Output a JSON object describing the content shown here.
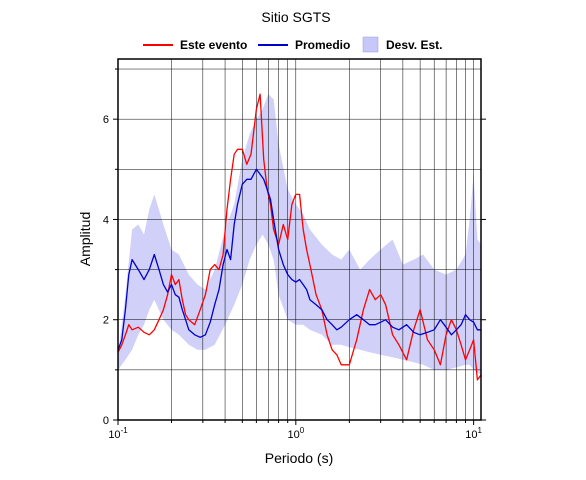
{
  "chart_data": {
    "type": "line",
    "title": "Sitio SGTS",
    "xlabel": "Periodo (s)",
    "ylabel": "Amplitud",
    "xscale": "log",
    "xlim": [
      0.1,
      11
    ],
    "ylim": [
      0,
      7.2
    ],
    "grid": true,
    "legend_position": "top",
    "x_tick_labels": [
      {
        "value": 0.1,
        "base": "10",
        "exp": "-1"
      },
      {
        "value": 1,
        "base": "10",
        "exp": "0"
      },
      {
        "value": 10,
        "base": "10",
        "exp": "1"
      }
    ],
    "y_ticks": [
      0,
      2,
      4,
      6
    ],
    "legend": [
      {
        "label": "Este evento",
        "color": "#ff0000",
        "kind": "line"
      },
      {
        "label": "Promedio",
        "color": "#0000cc",
        "kind": "line"
      },
      {
        "label": "Desv. Est.",
        "color": "#c8c8f8",
        "kind": "patch"
      }
    ],
    "series": [
      {
        "name": "Este evento",
        "color": "#ff0000",
        "x": [
          0.1,
          0.105,
          0.11,
          0.115,
          0.12,
          0.13,
          0.14,
          0.15,
          0.16,
          0.17,
          0.18,
          0.19,
          0.2,
          0.21,
          0.22,
          0.23,
          0.24,
          0.25,
          0.27,
          0.29,
          0.31,
          0.33,
          0.35,
          0.37,
          0.39,
          0.41,
          0.43,
          0.45,
          0.47,
          0.5,
          0.53,
          0.56,
          0.6,
          0.63,
          0.66,
          0.69,
          0.72,
          0.75,
          0.8,
          0.85,
          0.9,
          0.95,
          1.0,
          1.05,
          1.1,
          1.15,
          1.2,
          1.3,
          1.4,
          1.5,
          1.6,
          1.7,
          1.8,
          2.0,
          2.2,
          2.4,
          2.6,
          2.8,
          3.0,
          3.2,
          3.5,
          3.8,
          4.2,
          4.6,
          5.0,
          5.5,
          6.0,
          6.5,
          7.0,
          7.5,
          8.0,
          8.5,
          9.0,
          9.5,
          10.0,
          10.5,
          11.0
        ],
        "values": [
          1.35,
          1.5,
          1.7,
          1.9,
          1.8,
          1.85,
          1.75,
          1.7,
          1.8,
          2.0,
          2.2,
          2.5,
          2.9,
          2.7,
          2.8,
          2.4,
          2.1,
          2.0,
          1.9,
          2.2,
          2.5,
          3.0,
          3.1,
          3.0,
          3.3,
          4.2,
          4.8,
          5.3,
          5.4,
          5.4,
          5.1,
          5.3,
          6.2,
          6.5,
          5.2,
          4.6,
          4.3,
          3.8,
          3.5,
          3.9,
          3.6,
          4.3,
          4.5,
          4.5,
          3.8,
          3.4,
          3.1,
          2.5,
          2.2,
          1.7,
          1.4,
          1.3,
          1.1,
          1.1,
          1.6,
          2.2,
          2.6,
          2.4,
          2.5,
          2.3,
          1.7,
          1.5,
          1.2,
          1.8,
          2.2,
          1.6,
          1.4,
          1.1,
          1.7,
          2.0,
          1.8,
          1.5,
          1.2,
          1.4,
          1.6,
          0.8,
          0.9
        ]
      },
      {
        "name": "Promedio",
        "color": "#0000cc",
        "x": [
          0.1,
          0.105,
          0.11,
          0.115,
          0.12,
          0.13,
          0.14,
          0.15,
          0.16,
          0.17,
          0.18,
          0.19,
          0.2,
          0.21,
          0.22,
          0.23,
          0.24,
          0.25,
          0.27,
          0.29,
          0.31,
          0.33,
          0.35,
          0.37,
          0.39,
          0.41,
          0.43,
          0.45,
          0.47,
          0.5,
          0.53,
          0.56,
          0.6,
          0.63,
          0.66,
          0.69,
          0.72,
          0.75,
          0.8,
          0.85,
          0.9,
          0.95,
          1.0,
          1.05,
          1.1,
          1.15,
          1.2,
          1.3,
          1.4,
          1.5,
          1.6,
          1.7,
          1.8,
          2.0,
          2.2,
          2.4,
          2.6,
          2.8,
          3.0,
          3.2,
          3.5,
          3.8,
          4.2,
          4.6,
          5.0,
          5.5,
          6.0,
          6.5,
          7.0,
          7.5,
          8.0,
          8.5,
          9.0,
          9.5,
          10.0,
          10.5,
          11.0
        ],
        "values": [
          1.4,
          1.6,
          2.2,
          2.9,
          3.2,
          3.0,
          2.8,
          3.0,
          3.3,
          3.0,
          2.7,
          2.55,
          2.7,
          2.5,
          2.45,
          2.2,
          2.0,
          1.8,
          1.7,
          1.65,
          1.7,
          1.95,
          2.3,
          2.6,
          3.1,
          3.4,
          3.2,
          3.9,
          4.3,
          4.7,
          4.8,
          4.8,
          5.0,
          4.9,
          4.8,
          4.6,
          4.4,
          4.0,
          3.4,
          3.1,
          2.9,
          2.8,
          2.75,
          2.8,
          2.7,
          2.6,
          2.4,
          2.3,
          2.2,
          2.0,
          1.9,
          1.8,
          1.85,
          2.0,
          2.1,
          2.0,
          1.9,
          1.9,
          1.95,
          2.0,
          1.85,
          1.8,
          1.9,
          1.75,
          1.7,
          1.75,
          1.8,
          2.0,
          1.85,
          1.7,
          1.8,
          1.9,
          2.1,
          2.0,
          1.95,
          1.8,
          1.8
        ]
      }
    ],
    "band": {
      "name": "Desv. Est.",
      "color": "#c8c8f8",
      "x": [
        0.1,
        0.11,
        0.12,
        0.13,
        0.14,
        0.15,
        0.16,
        0.18,
        0.2,
        0.22,
        0.25,
        0.28,
        0.31,
        0.35,
        0.4,
        0.45,
        0.5,
        0.55,
        0.6,
        0.65,
        0.7,
        0.75,
        0.8,
        0.9,
        1.0,
        1.1,
        1.2,
        1.4,
        1.6,
        1.8,
        2.0,
        2.3,
        2.6,
        3.0,
        3.5,
        4.0,
        4.6,
        5.2,
        6.0,
        7.0,
        8.0,
        9.0,
        9.5,
        10.0,
        10.5,
        11.0
      ],
      "upper": [
        1.3,
        2.5,
        3.8,
        3.9,
        3.7,
        4.2,
        4.5,
        3.9,
        3.4,
        3.3,
        2.9,
        2.7,
        2.6,
        3.0,
        3.8,
        4.3,
        5.2,
        5.7,
        6.0,
        6.2,
        6.5,
        6.4,
        5.5,
        4.6,
        4.3,
        4.1,
        3.8,
        3.5,
        3.3,
        3.2,
        3.4,
        3.0,
        3.2,
        3.4,
        3.6,
        3.1,
        3.2,
        3.3,
        3.0,
        2.9,
        3.0,
        3.3,
        4.0,
        4.9,
        3.6,
        3.5
      ],
      "lower": [
        1.0,
        1.2,
        1.4,
        1.7,
        1.9,
        2.2,
        2.4,
        2.0,
        1.8,
        1.7,
        1.5,
        1.4,
        1.4,
        1.5,
        1.9,
        2.3,
        2.7,
        3.2,
        3.5,
        3.7,
        3.5,
        3.2,
        2.5,
        2.0,
        1.9,
        1.9,
        1.8,
        1.7,
        1.5,
        1.5,
        1.45,
        1.4,
        1.35,
        1.3,
        1.25,
        1.2,
        1.15,
        1.1,
        1.0,
        1.0,
        1.05,
        1.1,
        1.1,
        1.0,
        0.95,
        0.9
      ]
    }
  }
}
